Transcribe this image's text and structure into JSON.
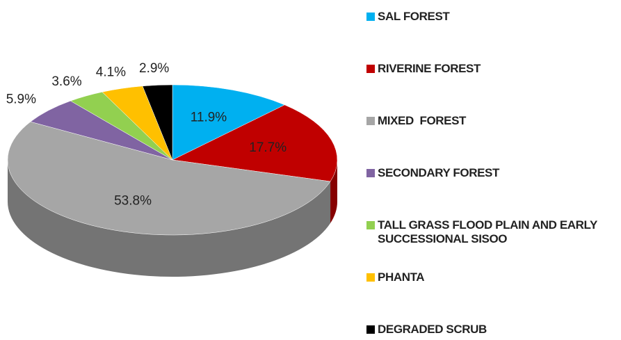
{
  "chart_data": {
    "type": "pie",
    "categories": [
      "SAL FOREST",
      "RIVERINE FOREST",
      "MIXED  FOREST",
      "SECONDARY FOREST",
      "TALL GRASS FLOOD PLAIN AND EARLY SUCCESSIONAL SISOO",
      "PHANTA",
      "DEGRADED SCRUB"
    ],
    "values": [
      11.9,
      17.7,
      53.8,
      5.9,
      3.6,
      4.1,
      2.9
    ],
    "value_labels": [
      "11.9%",
      "17.7%",
      "53.8%",
      "5.9%",
      "3.6%",
      "4.1%",
      "2.9%"
    ],
    "colors": [
      "#00b0f0",
      "#c00000",
      "#a6a6a6",
      "#8064a2",
      "#92d050",
      "#ffc000",
      "#000000"
    ],
    "legend": "right"
  }
}
